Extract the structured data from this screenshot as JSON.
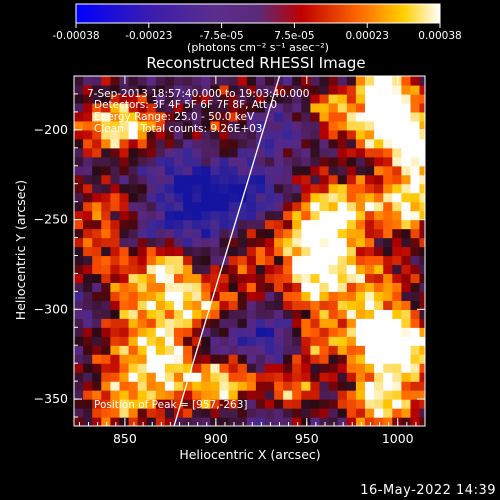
{
  "colorbar": {
    "ticks": [
      "-0.00038",
      "-0.00023",
      "-7.5e-05",
      "7.5e-05",
      "0.00023",
      "0.00038"
    ],
    "unit": "(photons cm⁻² s⁻¹ asec⁻²)",
    "range": [
      -0.00038,
      0.00038
    ]
  },
  "chart_data": {
    "type": "heatmap",
    "title": "Reconstructed RHESSI Image",
    "xlabel": "Heliocentric X (arcsec)",
    "ylabel": "Heliocentric Y (arcsec)",
    "xlim": [
      822,
      1015
    ],
    "ylim": [
      -365,
      -170
    ],
    "xticks": [
      850,
      900,
      950,
      1000
    ],
    "yticks": [
      -200,
      -250,
      -300,
      -350
    ],
    "annotations": [
      "7-Sep-2013 18:57:40.000 to 19:03:40.000",
      "Detectors: 3F 4F 5F 6F 7F 8F, Att 0",
      "Energy Range: 25.0 - 50.0 keV",
      "Clean     Total counts: 9.26E+03"
    ],
    "peak_label": "Position of Peak = [957,-263]",
    "peak": [
      957,
      -263
    ],
    "limb_line": [
      [
        877,
        -365
      ],
      [
        935,
        -170
      ]
    ],
    "colormap": "rainbow-hot (blue-purple-red-orange-yellow-white)"
  },
  "timestamp": "16-May-2022 14:39"
}
